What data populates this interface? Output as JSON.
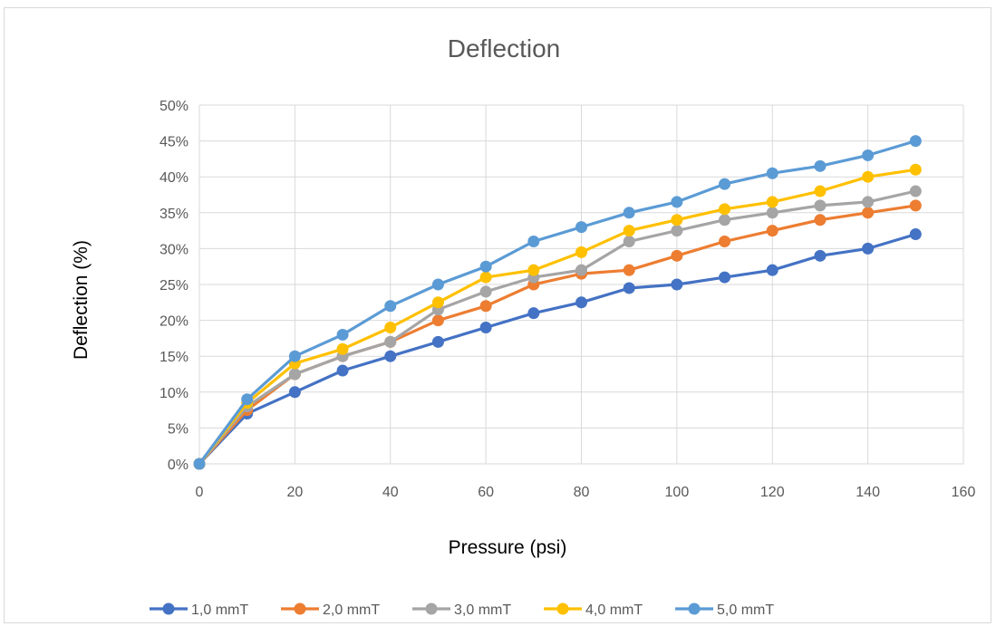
{
  "chart_data": {
    "type": "line",
    "title": "Deflection",
    "xlabel": "Pressure (psi)",
    "ylabel": "Deflection (%)",
    "xlim": [
      0,
      160
    ],
    "ylim": [
      0,
      50
    ],
    "x_ticks": [
      0,
      20,
      40,
      60,
      80,
      100,
      120,
      140,
      160
    ],
    "y_ticks": [
      0,
      5,
      10,
      15,
      20,
      25,
      30,
      35,
      40,
      45,
      50
    ],
    "y_tick_labels": [
      "0%",
      "5%",
      "10%",
      "15%",
      "20%",
      "25%",
      "30%",
      "35%",
      "40%",
      "45%",
      "50%"
    ],
    "grid": true,
    "legend_position": "bottom",
    "x": [
      0,
      10,
      20,
      30,
      40,
      50,
      60,
      70,
      80,
      90,
      100,
      110,
      120,
      130,
      140,
      150
    ],
    "series": [
      {
        "name": "1,0 mmT",
        "color": "#4472c4",
        "values": [
          0,
          7,
          10,
          13,
          15,
          17,
          19,
          21,
          22.5,
          24.5,
          25,
          26,
          27,
          29,
          30,
          32
        ]
      },
      {
        "name": "2,0 mmT",
        "color": "#ed7d31",
        "values": [
          0,
          7.5,
          12.5,
          15,
          17,
          20,
          22,
          25,
          26.5,
          27,
          29,
          31,
          32.5,
          34,
          35,
          36
        ]
      },
      {
        "name": "3,0 mmT",
        "color": "#a5a5a5",
        "values": [
          0,
          8,
          12.5,
          15,
          17,
          21.5,
          24,
          26,
          27,
          31,
          32.5,
          34,
          35,
          36,
          36.5,
          38
        ]
      },
      {
        "name": "4,0 mmT",
        "color": "#ffc000",
        "values": [
          0,
          8.5,
          14,
          16,
          19,
          22.5,
          26,
          27,
          29.5,
          32.5,
          34,
          35.5,
          36.5,
          38,
          40,
          41
        ]
      },
      {
        "name": "5,0 mmT",
        "color": "#5b9bd5",
        "values": [
          0,
          9,
          15,
          18,
          22,
          25,
          27.5,
          31,
          33,
          35,
          36.5,
          39,
          40.5,
          41.5,
          43,
          45
        ]
      }
    ]
  }
}
